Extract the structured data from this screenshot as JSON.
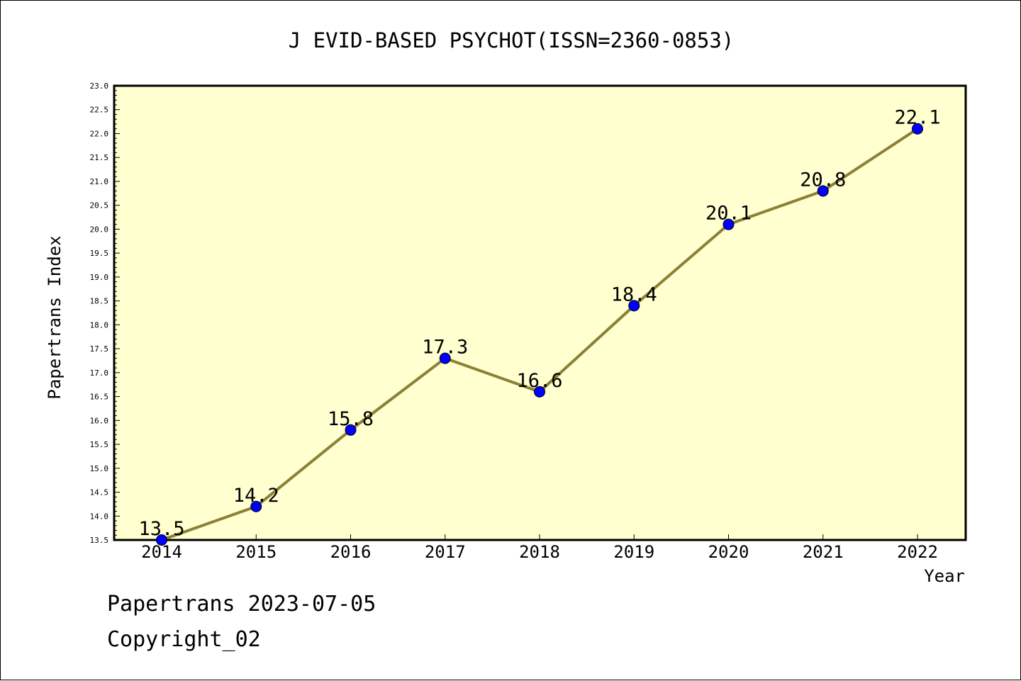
{
  "chart_data": {
    "type": "line",
    "title": "J EVID-BASED PSYCHOT(ISSN=2360-0853)",
    "xlabel": "Year",
    "ylabel": "Papertrans Index",
    "categories": [
      "2014",
      "2015",
      "2016",
      "2017",
      "2018",
      "2019",
      "2020",
      "2021",
      "2022"
    ],
    "series": [
      {
        "values": [
          13.5,
          14.2,
          15.8,
          17.3,
          16.6,
          18.4,
          20.1,
          20.8,
          22.1
        ],
        "labels": [
          "13.5",
          "14.2",
          "15.8",
          "17.3",
          "16.6",
          "18.4",
          "20.1",
          "20.8",
          "22.1"
        ]
      }
    ],
    "ylim": [
      13.5,
      23.0
    ],
    "yticks": [
      "13.5",
      "14.0",
      "14.5",
      "15.0",
      "15.5",
      "16.0",
      "16.5",
      "17.0",
      "17.5",
      "18.0",
      "18.5",
      "19.0",
      "19.5",
      "20.0",
      "20.5",
      "21.0",
      "21.5",
      "22.0",
      "22.5",
      "23.0"
    ],
    "grid": false,
    "legend": "none",
    "colors": {
      "plot_background": "#FFFFD0",
      "line": "#8B8035",
      "marker": "#0000FF"
    }
  },
  "footer": {
    "line1": "Papertrans 2023-07-05",
    "line2": "Copyright_02"
  }
}
